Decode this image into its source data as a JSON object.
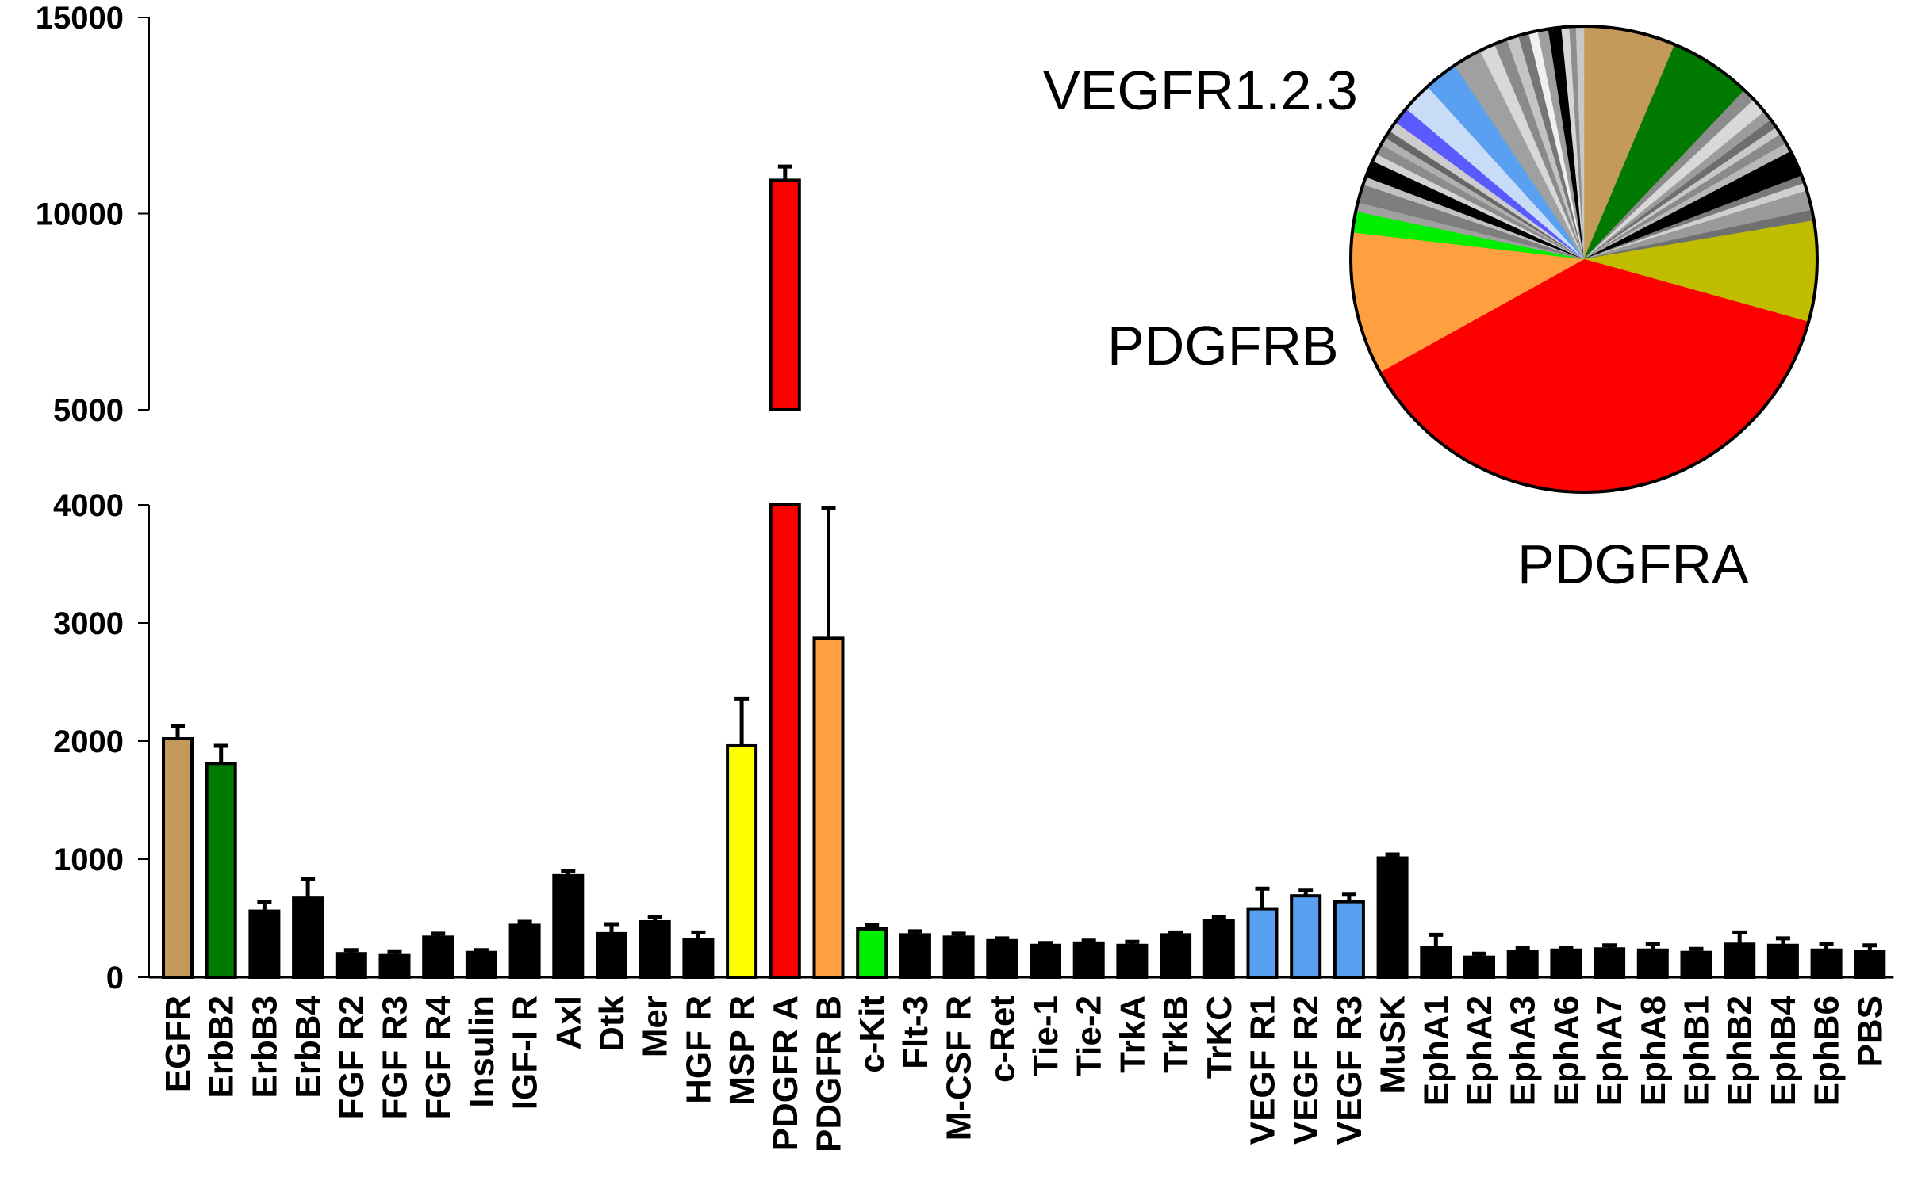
{
  "chart_data": [
    {
      "type": "bar",
      "y_axis_break": [
        4000,
        5000
      ],
      "ylim": [
        0,
        15000
      ],
      "yticks": [
        "0",
        "1000",
        "2000",
        "3000",
        "4000",
        "5000",
        "10000",
        "15000"
      ],
      "categories": [
        "EGFR",
        "ErbB2",
        "ErbB3",
        "ErbB4",
        "FGF R2",
        "FGF R3",
        "FGF R4",
        "Insulin",
        "IGF-I R",
        "Axl",
        "Dtk",
        "Mer",
        "HGF R",
        "MSP R",
        "PDGFR A",
        "PDGFR B",
        "c-Kit",
        "Flt-3",
        "M-CSF R",
        "c-Ret",
        "Tie-1",
        "Tie-2",
        "TrkA",
        "TrkB",
        "TrKC",
        "VEGF R1",
        "VEGF R2",
        "VEGF R3",
        "MuSK",
        "EphA1",
        "EphA2",
        "EphA3",
        "EphA6",
        "EphA7",
        "EphA8",
        "EphB1",
        "EphB2",
        "EphB4",
        "EphB6",
        "PBS"
      ],
      "values": [
        2020,
        1810,
        560,
        670,
        200,
        190,
        340,
        210,
        440,
        860,
        370,
        470,
        320,
        1960,
        10850,
        2870,
        410,
        360,
        340,
        310,
        270,
        290,
        270,
        360,
        480,
        580,
        690,
        640,
        1010,
        250,
        170,
        220,
        230,
        240,
        230,
        210,
        280,
        270,
        230,
        220
      ],
      "errors": [
        110,
        150,
        80,
        160,
        30,
        30,
        30,
        20,
        30,
        40,
        80,
        40,
        60,
        400,
        350,
        1100,
        30,
        30,
        30,
        20,
        20,
        20,
        30,
        20,
        30,
        170,
        50,
        60,
        30,
        110,
        30,
        30,
        20,
        30,
        50,
        30,
        100,
        60,
        50,
        50
      ],
      "colors": [
        "#c49a5a",
        "#007a00",
        "#000000",
        "#000000",
        "#000000",
        "#000000",
        "#000000",
        "#000000",
        "#000000",
        "#000000",
        "#000000",
        "#000000",
        "#000000",
        "#ffff00",
        "#ff0000",
        "#ffa040",
        "#00ee00",
        "#000000",
        "#000000",
        "#000000",
        "#000000",
        "#000000",
        "#000000",
        "#000000",
        "#000000",
        "#5aa0f0",
        "#5aa0f0",
        "#5aa0f0",
        "#000000",
        "#000000",
        "#000000",
        "#000000",
        "#000000",
        "#000000",
        "#000000",
        "#000000",
        "#000000",
        "#000000",
        "#000000",
        "#000000"
      ]
    },
    {
      "type": "pie",
      "labels": [
        "VEGFR1.2.3",
        "PDGFRB",
        "PDGFRA"
      ],
      "slices": [
        {
          "value": 7.0,
          "color": "#c49a5a"
        },
        {
          "value": 6.3,
          "color": "#007a00"
        },
        {
          "value": 1.0,
          "color": "#8c8c8c"
        },
        {
          "value": 1.2,
          "color": "#d8d8d8"
        },
        {
          "value": 0.8,
          "color": "#9c9c9c"
        },
        {
          "value": 0.7,
          "color": "#6e6e6e"
        },
        {
          "value": 0.6,
          "color": "#c8c8c8"
        },
        {
          "value": 0.8,
          "color": "#8a8a8a"
        },
        {
          "value": 0.7,
          "color": "#b8b8b8"
        },
        {
          "value": 2.0,
          "color": "#000000"
        },
        {
          "value": 0.6,
          "color": "#7a7a7a"
        },
        {
          "value": 0.6,
          "color": "#d0d0d0"
        },
        {
          "value": 1.5,
          "color": "#9a9a9a"
        },
        {
          "value": 0.8,
          "color": "#707070"
        },
        {
          "value": 7.7,
          "color": "#c0bc00"
        },
        {
          "value": 41.4,
          "color": "#ff0000"
        },
        {
          "value": 10.9,
          "color": "#ffa040"
        },
        {
          "value": 1.6,
          "color": "#00ee00"
        },
        {
          "value": 0.7,
          "color": "#a0a0a0"
        },
        {
          "value": 1.4,
          "color": "#7e7e7e"
        },
        {
          "value": 0.6,
          "color": "#c0c0c0"
        },
        {
          "value": 1.3,
          "color": "#000000"
        },
        {
          "value": 0.6,
          "color": "#d4d4d4"
        },
        {
          "value": 0.8,
          "color": "#8c8c8c"
        },
        {
          "value": 0.6,
          "color": "#b0b0b0"
        },
        {
          "value": 0.6,
          "color": "#666666"
        },
        {
          "value": 0.8,
          "color": "#cccccc"
        },
        {
          "value": 1.3,
          "color": "#5a5aff"
        },
        {
          "value": 2.3,
          "color": "#c8dcf8"
        },
        {
          "value": 2.6,
          "color": "#5aa0f0"
        },
        {
          "value": 2.2,
          "color": "#a0a0a0"
        },
        {
          "value": 1.2,
          "color": "#d8d8d8"
        },
        {
          "value": 1.0,
          "color": "#8a8a8a"
        },
        {
          "value": 0.9,
          "color": "#c4c4c4"
        },
        {
          "value": 0.8,
          "color": "#767676"
        },
        {
          "value": 0.7,
          "color": "#f0f0f0"
        },
        {
          "value": 0.8,
          "color": "#9e9e9e"
        },
        {
          "value": 1.0,
          "color": "#000000"
        },
        {
          "value": 0.6,
          "color": "#d6d6d6"
        },
        {
          "value": 0.5,
          "color": "#8e8e8e"
        },
        {
          "value": 0.6,
          "color": "#c8c8c8"
        }
      ]
    }
  ]
}
